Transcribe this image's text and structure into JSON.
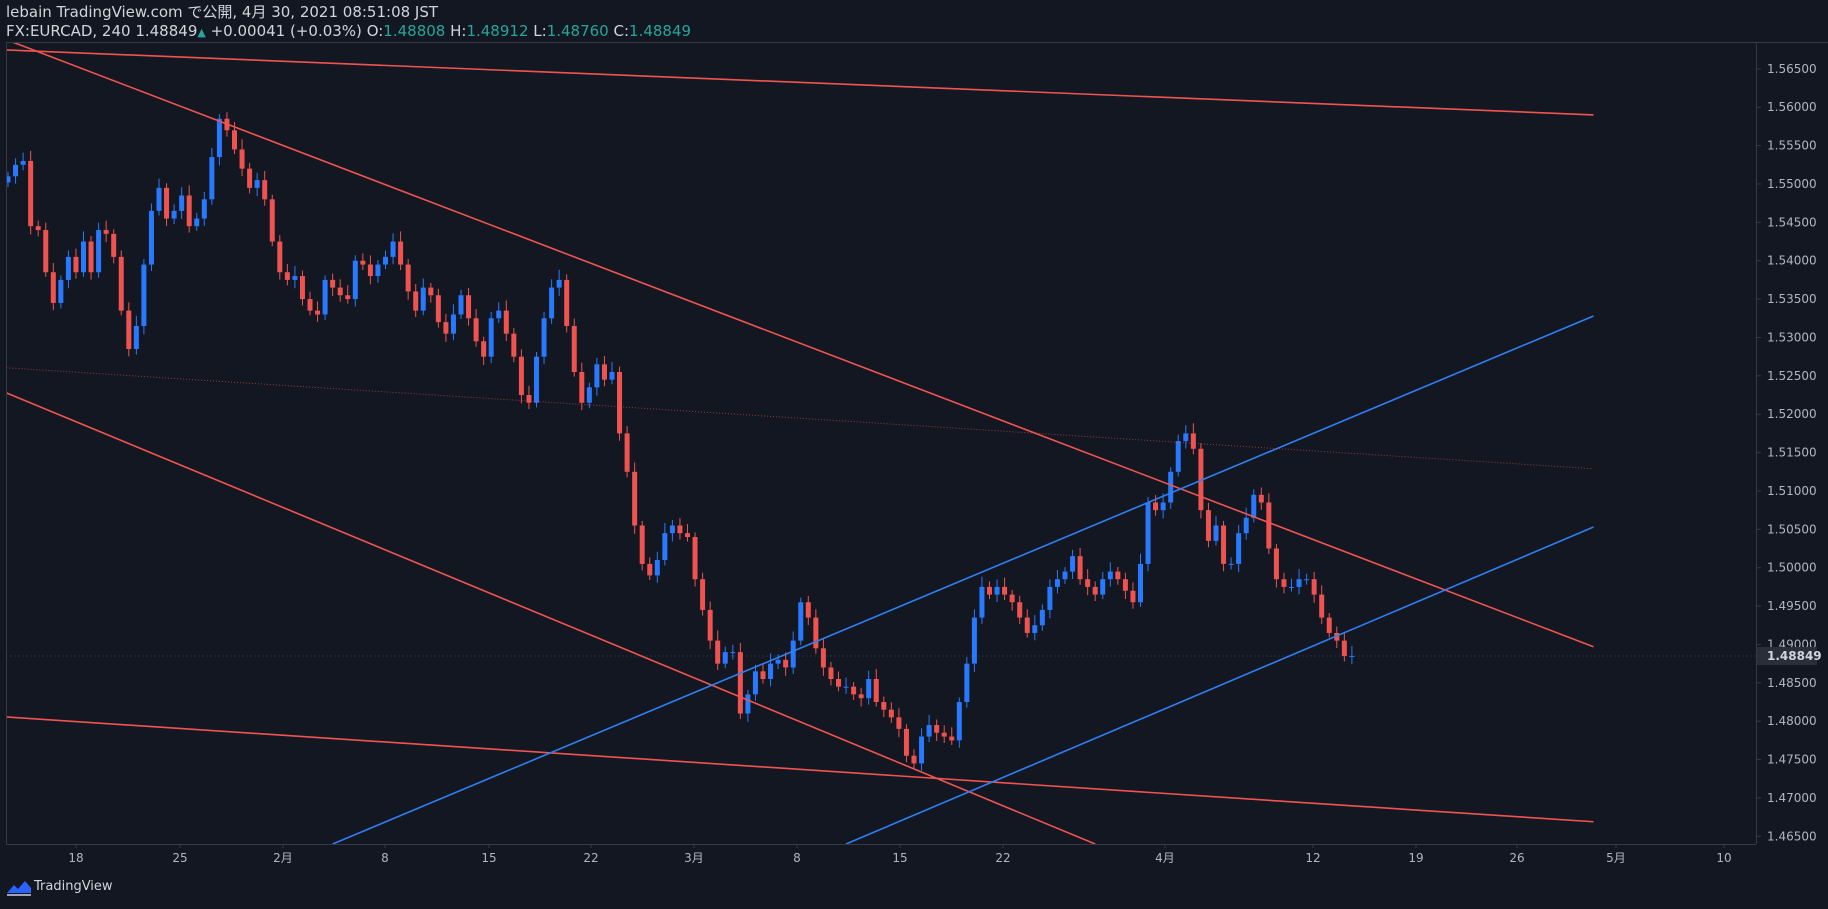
{
  "header": {
    "published": "lebain TradingView.com で公開, 4月 30, 2021 08:51:08 JST",
    "symbol": "FX:EURCAD, 240",
    "last": "1.48849",
    "change": "+0.00041 (+0.03%)",
    "o_label": "O:",
    "o": "1.48808",
    "h_label": "H:",
    "h": "1.48912",
    "l_label": "L:",
    "l": "1.48760",
    "c_label": "C:",
    "c": "1.48849"
  },
  "footer": {
    "brand": "TradingView"
  },
  "colors": {
    "background": "#131722",
    "up": "#2979ff",
    "down": "#ef5350",
    "red_line": "#f05450",
    "blue_line": "#2f7ff0",
    "axis_text": "#b2b5be",
    "change_green": "#26a69a"
  },
  "chart_data": {
    "type": "candlestick",
    "symbol": "FX:EURCAD",
    "interval": "240",
    "last_price_label": "1.48849",
    "ylim": [
      1.464,
      1.5685
    ],
    "y_ticks": [
      "1.46500",
      "1.47000",
      "1.47500",
      "1.48000",
      "1.48500",
      "1.49000",
      "1.49500",
      "1.50000",
      "1.50500",
      "1.51000",
      "1.51500",
      "1.52000",
      "1.52500",
      "1.53000",
      "1.53500",
      "1.54000",
      "1.54500",
      "1.55000",
      "1.55500",
      "1.56000",
      "1.56500"
    ],
    "x_ticks": [
      "18",
      "25",
      "2月",
      "8",
      "15",
      "22",
      "3月",
      "8",
      "15",
      "22",
      "4月",
      "12",
      "19",
      "26",
      "5月",
      "10"
    ],
    "close_path": [
      [
        0,
        1.551
      ],
      [
        1,
        1.5525
      ],
      [
        2,
        1.553
      ],
      [
        3,
        1.5445
      ],
      [
        4,
        1.544
      ],
      [
        5,
        1.5385
      ],
      [
        6,
        1.5345
      ],
      [
        7,
        1.5375
      ],
      [
        8,
        1.5405
      ],
      [
        9,
        1.5385
      ],
      [
        10,
        1.5425
      ],
      [
        11,
        1.5385
      ],
      [
        12,
        1.544
      ],
      [
        13,
        1.5435
      ],
      [
        14,
        1.5405
      ],
      [
        15,
        1.5335
      ],
      [
        16,
        1.5285
      ],
      [
        17,
        1.5315
      ],
      [
        18,
        1.5395
      ],
      [
        19,
        1.5465
      ],
      [
        20,
        1.5495
      ],
      [
        21,
        1.5455
      ],
      [
        22,
        1.5465
      ],
      [
        23,
        1.5485
      ],
      [
        24,
        1.5445
      ],
      [
        25,
        1.5455
      ],
      [
        26,
        1.548
      ],
      [
        27,
        1.5535
      ],
      [
        28,
        1.5585
      ],
      [
        29,
        1.557
      ],
      [
        30,
        1.5545
      ],
      [
        31,
        1.552
      ],
      [
        32,
        1.5495
      ],
      [
        33,
        1.5505
      ],
      [
        34,
        1.548
      ],
      [
        35,
        1.5425
      ],
      [
        36,
        1.5385
      ],
      [
        37,
        1.5375
      ],
      [
        38,
        1.538
      ],
      [
        39,
        1.535
      ],
      [
        40,
        1.5335
      ],
      [
        41,
        1.533
      ],
      [
        42,
        1.5375
      ],
      [
        43,
        1.5365
      ],
      [
        44,
        1.5355
      ],
      [
        45,
        1.535
      ],
      [
        46,
        1.54
      ],
      [
        47,
        1.5395
      ],
      [
        48,
        1.538
      ],
      [
        49,
        1.5395
      ],
      [
        50,
        1.5405
      ],
      [
        51,
        1.5425
      ],
      [
        52,
        1.5395
      ],
      [
        53,
        1.536
      ],
      [
        54,
        1.5335
      ],
      [
        55,
        1.5365
      ],
      [
        56,
        1.5355
      ],
      [
        57,
        1.532
      ],
      [
        58,
        1.5305
      ],
      [
        59,
        1.533
      ],
      [
        60,
        1.5355
      ],
      [
        61,
        1.5325
      ],
      [
        62,
        1.5295
      ],
      [
        63,
        1.5275
      ],
      [
        64,
        1.5325
      ],
      [
        65,
        1.5335
      ],
      [
        66,
        1.5305
      ],
      [
        67,
        1.5275
      ],
      [
        68,
        1.5225
      ],
      [
        69,
        1.5215
      ],
      [
        70,
        1.5275
      ],
      [
        71,
        1.5325
      ],
      [
        72,
        1.5365
      ],
      [
        73,
        1.5375
      ],
      [
        74,
        1.5315
      ],
      [
        75,
        1.5255
      ],
      [
        76,
        1.5215
      ],
      [
        77,
        1.5235
      ],
      [
        78,
        1.5265
      ],
      [
        79,
        1.5245
      ],
      [
        80,
        1.5255
      ],
      [
        81,
        1.5175
      ],
      [
        82,
        1.5125
      ],
      [
        83,
        1.5055
      ],
      [
        84,
        1.5005
      ],
      [
        85,
        1.499
      ],
      [
        86,
        1.501
      ],
      [
        87,
        1.5045
      ],
      [
        88,
        1.5055
      ],
      [
        89,
        1.5045
      ],
      [
        90,
        1.504
      ],
      [
        91,
        1.4985
      ],
      [
        92,
        1.4945
      ],
      [
        93,
        1.4905
      ],
      [
        94,
        1.4875
      ],
      [
        95,
        1.489
      ],
      [
        96,
        1.489
      ],
      [
        97,
        1.481
      ],
      [
        98,
        1.4835
      ],
      [
        99,
        1.4865
      ],
      [
        100,
        1.4855
      ],
      [
        101,
        1.4875
      ],
      [
        102,
        1.488
      ],
      [
        103,
        1.487
      ],
      [
        104,
        1.4905
      ],
      [
        105,
        1.4955
      ],
      [
        106,
        1.4935
      ],
      [
        107,
        1.4895
      ],
      [
        108,
        1.487
      ],
      [
        109,
        1.4855
      ],
      [
        110,
        1.4845
      ],
      [
        111,
        1.4845
      ],
      [
        112,
        1.4835
      ],
      [
        113,
        1.483
      ],
      [
        114,
        1.4855
      ],
      [
        115,
        1.4825
      ],
      [
        116,
        1.4815
      ],
      [
        117,
        1.4805
      ],
      [
        118,
        1.479
      ],
      [
        119,
        1.4755
      ],
      [
        120,
        1.4745
      ],
      [
        121,
        1.478
      ],
      [
        122,
        1.4795
      ],
      [
        123,
        1.4785
      ],
      [
        124,
        1.478
      ],
      [
        125,
        1.4775
      ],
      [
        126,
        1.4825
      ],
      [
        127,
        1.4875
      ],
      [
        128,
        1.4935
      ],
      [
        129,
        1.4975
      ],
      [
        130,
        1.4965
      ],
      [
        131,
        1.4975
      ],
      [
        132,
        1.4965
      ],
      [
        133,
        1.4955
      ],
      [
        134,
        1.4935
      ],
      [
        135,
        1.4915
      ],
      [
        136,
        1.4925
      ],
      [
        137,
        1.4945
      ],
      [
        138,
        1.4975
      ],
      [
        139,
        1.4985
      ],
      [
        140,
        1.4995
      ],
      [
        141,
        1.5015
      ],
      [
        142,
        1.4985
      ],
      [
        143,
        1.4975
      ],
      [
        144,
        1.4965
      ],
      [
        145,
        1.4985
      ],
      [
        146,
        1.4995
      ],
      [
        147,
        1.4985
      ],
      [
        148,
        1.497
      ],
      [
        149,
        1.4955
      ],
      [
        150,
        1.5005
      ],
      [
        151,
        1.5085
      ],
      [
        152,
        1.5075
      ],
      [
        153,
        1.5085
      ],
      [
        154,
        1.5125
      ],
      [
        155,
        1.5165
      ],
      [
        156,
        1.5175
      ],
      [
        157,
        1.5155
      ],
      [
        158,
        1.5075
      ],
      [
        159,
        1.5035
      ],
      [
        160,
        1.5055
      ],
      [
        161,
        1.5005
      ],
      [
        162,
        1.5005
      ],
      [
        163,
        1.5045
      ],
      [
        164,
        1.5065
      ],
      [
        165,
        1.5095
      ],
      [
        166,
        1.5085
      ],
      [
        167,
        1.5025
      ],
      [
        168,
        1.4985
      ],
      [
        169,
        1.4975
      ],
      [
        170,
        1.4975
      ],
      [
        171,
        1.4985
      ],
      [
        172,
        1.4985
      ],
      [
        173,
        1.4965
      ],
      [
        174,
        1.4935
      ],
      [
        175,
        1.4915
      ],
      [
        176,
        1.4905
      ],
      [
        177,
        1.4885
      ],
      [
        178,
        1.4885
      ]
    ],
    "trendlines": [
      {
        "color": "red",
        "from": [
          -1,
          1.5675
        ],
        "to": [
          210,
          1.559
        ]
      },
      {
        "color": "red",
        "from": [
          -1,
          1.5691
        ],
        "to": [
          210,
          1.4897
        ]
      },
      {
        "color": "red",
        "from": [
          -1,
          1.5231
        ],
        "to": [
          144,
          1.464
        ]
      },
      {
        "color": "red",
        "from": [
          -1,
          1.4806
        ],
        "to": [
          210,
          1.4669
        ]
      },
      {
        "color": "blue",
        "from": [
          43,
          1.464
        ],
        "to": [
          210,
          1.5328
        ]
      },
      {
        "color": "blue",
        "from": [
          111,
          1.464
        ],
        "to": [
          210,
          1.5053
        ]
      },
      {
        "color": "red_dotted",
        "from": [
          -1,
          1.5261
        ],
        "to": [
          210,
          1.5129
        ]
      }
    ],
    "grid": false
  }
}
